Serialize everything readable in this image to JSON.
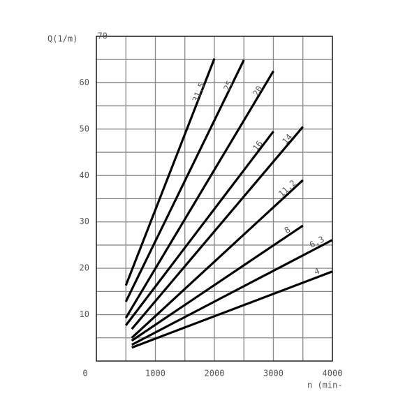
{
  "chart_data": {
    "type": "line",
    "y_label": "Q(1/m)",
    "x_label": "n (min-",
    "xlim": [
      0,
      4000
    ],
    "ylim": [
      0,
      70
    ],
    "xticks": [
      0,
      1000,
      2000,
      3000,
      4000
    ],
    "yticks": [
      10,
      20,
      30,
      40,
      50,
      60,
      70
    ],
    "xminor": [
      500,
      1500,
      2500,
      3500
    ],
    "yminor": [
      5,
      15,
      25,
      35,
      45,
      55,
      65
    ],
    "grid": true,
    "legend": "inline",
    "series": [
      {
        "name": "31,5",
        "color": "#000000",
        "x": [
          500,
          2000
        ],
        "values": [
          16.3,
          65.2
        ]
      },
      {
        "name": "25",
        "color": "#000000",
        "x": [
          500,
          2500
        ],
        "values": [
          12.8,
          64.9
        ]
      },
      {
        "name": "20",
        "color": "#000000",
        "x": [
          500,
          3000
        ],
        "values": [
          9.3,
          62.5
        ]
      },
      {
        "name": "16",
        "color": "#000000",
        "x": [
          500,
          3000
        ],
        "values": [
          7.7,
          49.5
        ]
      },
      {
        "name": "14",
        "color": "#000000",
        "x": [
          600,
          3500
        ],
        "values": [
          6.9,
          50.5
        ]
      },
      {
        "name": "11,2",
        "color": "#000000",
        "x": [
          600,
          3500
        ],
        "values": [
          5.0,
          39.0
        ]
      },
      {
        "name": "8",
        "color": "#000000",
        "x": [
          600,
          3500
        ],
        "values": [
          4.4,
          29.2
        ]
      },
      {
        "name": "6,3",
        "color": "#000000",
        "x": [
          600,
          4000
        ],
        "values": [
          3.5,
          26.1
        ]
      },
      {
        "name": "4",
        "color": "#000000",
        "x": [
          600,
          4000
        ],
        "values": [
          2.9,
          19.3
        ]
      }
    ]
  }
}
